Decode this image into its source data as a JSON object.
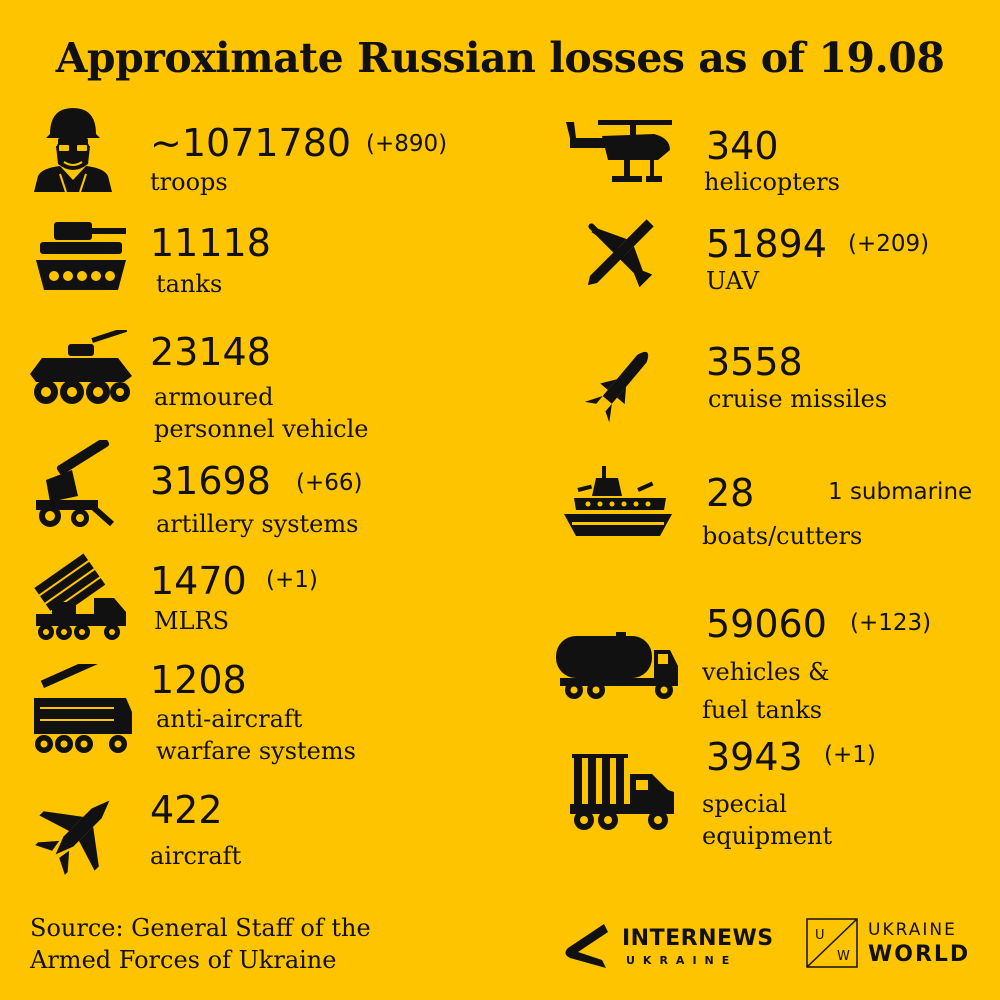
{
  "title": "Approximate Russian losses as of 19.08",
  "colors": {
    "background": "#FFC400",
    "foreground": "#111111"
  },
  "left_items": [
    {
      "icon": "soldier-icon",
      "value": "~1071780",
      "delta": "(+890)",
      "label_lines": [
        "troops"
      ]
    },
    {
      "icon": "tank-icon",
      "value": "11118",
      "delta": "",
      "label_lines": [
        "tanks"
      ]
    },
    {
      "icon": "armoured-vehicle-icon",
      "value": "23148",
      "delta": "",
      "label_lines": [
        "armoured",
        "personnel vehicle"
      ]
    },
    {
      "icon": "artillery-icon",
      "value": "31698",
      "delta": "(+66)",
      "label_lines": [
        "artillery systems"
      ]
    },
    {
      "icon": "mlrs-icon",
      "value": "1470",
      "delta": "(+1)",
      "label_lines": [
        "MLRS"
      ]
    },
    {
      "icon": "anti-aircraft-icon",
      "value": "1208",
      "delta": "",
      "label_lines": [
        "anti-aircraft",
        "warfare systems"
      ]
    },
    {
      "icon": "fighter-jet-icon",
      "value": "422",
      "delta": "",
      "label_lines": [
        "aircraft"
      ]
    }
  ],
  "right_items": [
    {
      "icon": "helicopter-icon",
      "value": "340",
      "delta": "",
      "label_lines": [
        "helicopters"
      ]
    },
    {
      "icon": "drone-icon",
      "value": "51894",
      "delta": "(+209)",
      "label_lines": [
        "UAV"
      ]
    },
    {
      "icon": "cruise-missile-icon",
      "value": "3558",
      "delta": "",
      "label_lines": [
        "cruise missiles"
      ]
    },
    {
      "icon": "warship-icon",
      "value": "28",
      "delta": "1 submarine",
      "label_lines": [
        "boats/cutters"
      ]
    },
    {
      "icon": "fuel-truck-icon",
      "value": "59060",
      "delta": "(+123)",
      "label_lines": [
        "vehicles &",
        "fuel tanks"
      ]
    },
    {
      "icon": "special-truck-icon",
      "value": "3943",
      "delta": "(+1)",
      "label_lines": [
        "special",
        "equipment"
      ]
    }
  ],
  "source_lines": [
    "Source: General Staff of the",
    "Armed Forces of Ukraine"
  ],
  "logos": {
    "internews_main": "INTERNEWS",
    "internews_sub": "UKRAINE",
    "uw_mark_left": "U",
    "uw_mark_right": "W",
    "uw_line1": "UKRAINE",
    "uw_line2": "WORLD"
  }
}
